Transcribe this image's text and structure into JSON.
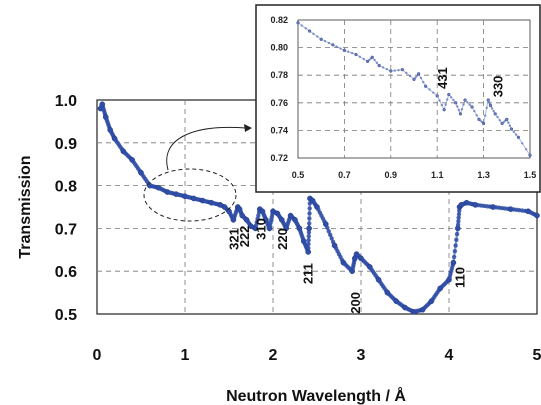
{
  "chart_data": [
    {
      "id": "main",
      "type": "scatter",
      "xlabel": "Neutron Wavelength / Å",
      "ylabel": "Transmission",
      "xlim": [
        0,
        5
      ],
      "ylim": [
        0.5,
        1.0
      ],
      "x_ticks": [
        "0",
        "1",
        "2",
        "3",
        "4",
        "5"
      ],
      "y_ticks": [
        "0.5",
        "0.6",
        "0.7",
        "0.8",
        "0.9",
        "1.0"
      ],
      "grid": true,
      "color": "#2f4ea6",
      "series": [
        {
          "x": [
            0.04,
            0.06,
            0.1,
            0.15,
            0.2,
            0.3,
            0.4,
            0.5,
            0.6,
            0.7,
            0.8,
            0.9,
            1.0,
            1.1,
            1.2,
            1.3,
            1.4,
            1.45,
            1.5,
            1.55,
            1.6,
            1.62,
            1.65,
            1.7,
            1.75,
            1.8,
            1.85,
            1.88,
            1.92,
            1.96,
            2.0,
            2.05,
            2.1,
            2.15,
            2.2,
            2.25,
            2.3,
            2.35,
            2.4,
            2.41,
            2.42,
            2.45,
            2.5,
            2.6,
            2.7,
            2.8,
            2.9,
            2.93,
            2.95,
            3.0,
            3.1,
            3.2,
            3.3,
            3.4,
            3.5,
            3.6,
            3.7,
            3.8,
            3.9,
            4.0,
            4.05,
            4.1,
            4.12,
            4.14,
            4.2,
            4.3,
            4.5,
            4.7,
            4.9,
            5.0
          ],
          "y": [
            0.98,
            0.99,
            0.96,
            0.93,
            0.91,
            0.88,
            0.86,
            0.83,
            0.8,
            0.795,
            0.785,
            0.78,
            0.775,
            0.77,
            0.765,
            0.76,
            0.755,
            0.75,
            0.74,
            0.72,
            0.75,
            0.745,
            0.73,
            0.72,
            0.705,
            0.7,
            0.745,
            0.74,
            0.72,
            0.7,
            0.74,
            0.735,
            0.72,
            0.7,
            0.73,
            0.72,
            0.7,
            0.67,
            0.645,
            0.7,
            0.77,
            0.765,
            0.75,
            0.71,
            0.66,
            0.62,
            0.6,
            0.63,
            0.64,
            0.63,
            0.61,
            0.58,
            0.55,
            0.53,
            0.515,
            0.505,
            0.51,
            0.53,
            0.56,
            0.58,
            0.62,
            0.7,
            0.75,
            0.755,
            0.76,
            0.755,
            0.75,
            0.745,
            0.74,
            0.73
          ]
        }
      ],
      "annotations": [
        {
          "text": "321",
          "x": 1.55
        },
        {
          "text": "222",
          "x": 1.67
        },
        {
          "text": "310",
          "x": 1.86
        },
        {
          "text": "220",
          "x": 2.1
        },
        {
          "text": "211",
          "x": 2.39
        },
        {
          "text": "200",
          "x": 2.93
        },
        {
          "text": "110",
          "x": 4.12
        }
      ]
    },
    {
      "id": "inset",
      "type": "scatter",
      "xlim": [
        0.5,
        1.5
      ],
      "ylim": [
        0.72,
        0.82
      ],
      "x_ticks": [
        "0.5",
        "0.7",
        "0.9",
        "1.1",
        "1.3",
        "1.5"
      ],
      "y_ticks": [
        "0.72",
        "0.74",
        "0.76",
        "0.78",
        "0.80",
        "0.82"
      ],
      "grid": true,
      "color": "#6c80c2",
      "series": [
        {
          "x": [
            0.5,
            0.55,
            0.6,
            0.65,
            0.7,
            0.75,
            0.8,
            0.82,
            0.85,
            0.9,
            0.95,
            1.0,
            1.02,
            1.05,
            1.1,
            1.13,
            1.15,
            1.18,
            1.2,
            1.22,
            1.25,
            1.28,
            1.3,
            1.32,
            1.33,
            1.35,
            1.38,
            1.4,
            1.42,
            1.45,
            1.5
          ],
          "y": [
            0.818,
            0.812,
            0.806,
            0.802,
            0.798,
            0.795,
            0.79,
            0.793,
            0.787,
            0.783,
            0.784,
            0.777,
            0.781,
            0.772,
            0.765,
            0.755,
            0.766,
            0.76,
            0.752,
            0.762,
            0.757,
            0.748,
            0.745,
            0.762,
            0.758,
            0.752,
            0.745,
            0.748,
            0.741,
            0.735,
            0.722
          ]
        }
      ],
      "annotations": [
        {
          "text": "431",
          "x": 1.12
        },
        {
          "text": "330",
          "x": 1.36
        }
      ]
    }
  ]
}
